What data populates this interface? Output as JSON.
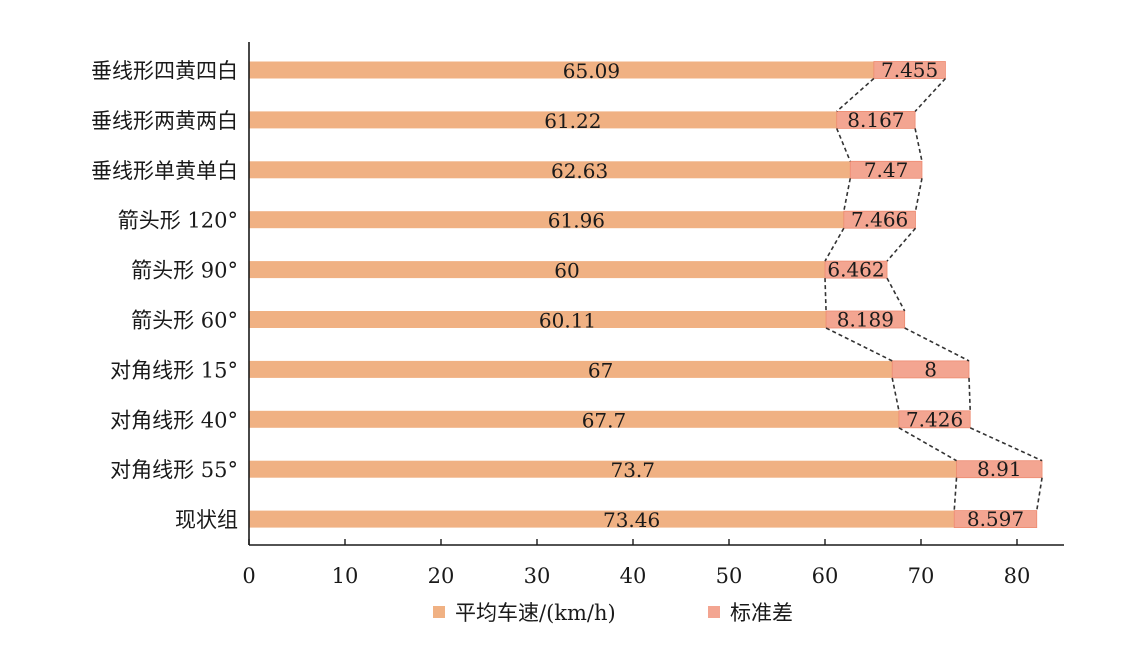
{
  "chart_data": {
    "type": "bar",
    "orientation": "horizontal",
    "stacked": true,
    "categories": [
      "垂线形四黄四白",
      "垂线形两黄两白",
      "垂线形单黄单白",
      "箭头形 120°",
      "箭头形 90°",
      "箭头形 60°",
      "对角线形 15°",
      "对角线形 40°",
      "对角线形 55°",
      "现状组"
    ],
    "series": [
      {
        "name": "平均车速/(km/h)",
        "color": "#f0b183",
        "values": [
          65.09,
          61.22,
          62.63,
          61.96,
          60,
          60.11,
          67,
          67.7,
          73.7,
          73.46
        ],
        "labels": [
          "65.09",
          "61.22",
          "62.63",
          "61.96",
          "60",
          "60.11",
          "67",
          "67.7",
          "73.7",
          "73.46"
        ]
      },
      {
        "name": "标准差",
        "color": "#f3a591",
        "values": [
          7.455,
          8.167,
          7.47,
          7.466,
          6.462,
          8.189,
          8,
          7.426,
          8.91,
          8.597
        ],
        "labels": [
          "7.455",
          "8.167",
          "7.47",
          "7.466",
          "6.462",
          "8.189",
          "8",
          "7.426",
          "8.91",
          "8.597"
        ]
      }
    ],
    "x_ticks": [
      "0",
      "10",
      "20",
      "30",
      "40",
      "50",
      "60",
      "70",
      "80"
    ],
    "xlim": [
      0,
      85
    ],
    "grid": false,
    "legend_position": "bottom",
    "series_lines": "dashed"
  }
}
